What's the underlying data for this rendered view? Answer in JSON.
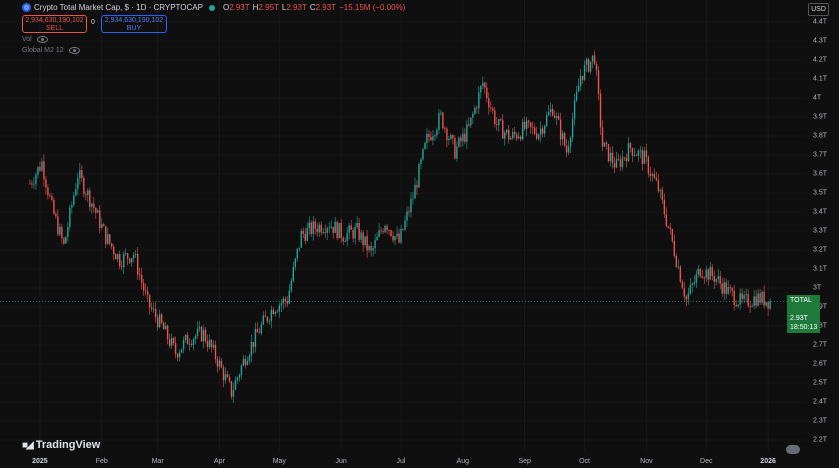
{
  "header": {
    "title": "Crypto Total Market Cap, $ · 1D · CRYPTOCAP",
    "ohlc": [
      {
        "k": "O",
        "v": "2.93T"
      },
      {
        "k": "H",
        "v": "2.95T"
      },
      {
        "k": "L",
        "v": "2.93T"
      },
      {
        "k": "C",
        "v": "2.93T"
      },
      {
        "k": "",
        "v": "−15.15M (−0.00%)"
      }
    ]
  },
  "trade": {
    "sell_price": "2,934,630,190,102",
    "sell_label": "SELL",
    "spread": "0",
    "buy_price": "2,934,630,190,102",
    "buy_label": "BUY"
  },
  "indicators": [
    {
      "label": "Vol"
    },
    {
      "label": "Global M2 12"
    }
  ],
  "currency": "USD",
  "price_tag": {
    "symbol": "TOTAL",
    "price": "2.93T",
    "countdown": "18:50:13"
  },
  "brand": "TradingView",
  "colors": {
    "up": "#26a69a",
    "down": "#ef5350",
    "background": "#0f0f0f",
    "grid": "#1c1c1c"
  },
  "chart_data": {
    "type": "candlestick",
    "y_unit": "T USD",
    "ylim": [
      2.2,
      4.4
    ],
    "y_ticks": [
      "4.4T",
      "4.3T",
      "4.2T",
      "4.1T",
      "4T",
      "3.9T",
      "3.8T",
      "3.7T",
      "3.6T",
      "3.5T",
      "3.4T",
      "3.3T",
      "3.2T",
      "3.1T",
      "3T",
      "2.9T",
      "2.8T",
      "2.7T",
      "2.6T",
      "2.5T",
      "2.4T",
      "2.3T",
      "2.2T"
    ],
    "x_ticks": [
      "2025",
      "Feb",
      "Mar",
      "Apr",
      "May",
      "Jun",
      "Jul",
      "Aug",
      "Sep",
      "Oct",
      "Nov",
      "Dec",
      "2026"
    ],
    "x_ticks_bold": [
      "2025",
      "2026"
    ],
    "grid": true,
    "close_series": [
      {
        "date": "2024-12-27",
        "close": 3.55
      },
      {
        "date": "2025-01-02",
        "close": 3.66
      },
      {
        "date": "2025-01-07",
        "close": 3.42
      },
      {
        "date": "2025-01-13",
        "close": 3.22
      },
      {
        "date": "2025-01-20",
        "close": 3.6
      },
      {
        "date": "2025-01-27",
        "close": 3.45
      },
      {
        "date": "2025-02-03",
        "close": 3.27
      },
      {
        "date": "2025-02-10",
        "close": 3.15
      },
      {
        "date": "2025-02-17",
        "close": 3.18
      },
      {
        "date": "2025-02-24",
        "close": 2.92
      },
      {
        "date": "2025-03-03",
        "close": 2.8
      },
      {
        "date": "2025-03-10",
        "close": 2.66
      },
      {
        "date": "2025-03-17",
        "close": 2.74
      },
      {
        "date": "2025-03-24",
        "close": 2.76
      },
      {
        "date": "2025-03-31",
        "close": 2.62
      },
      {
        "date": "2025-04-07",
        "close": 2.45
      },
      {
        "date": "2025-04-14",
        "close": 2.64
      },
      {
        "date": "2025-04-21",
        "close": 2.78
      },
      {
        "date": "2025-04-28",
        "close": 2.9
      },
      {
        "date": "2025-05-05",
        "close": 2.94
      },
      {
        "date": "2025-05-12",
        "close": 3.28
      },
      {
        "date": "2025-05-19",
        "close": 3.32
      },
      {
        "date": "2025-05-26",
        "close": 3.34
      },
      {
        "date": "2025-06-02",
        "close": 3.28
      },
      {
        "date": "2025-06-09",
        "close": 3.3
      },
      {
        "date": "2025-06-16",
        "close": 3.18
      },
      {
        "date": "2025-06-23",
        "close": 3.35
      },
      {
        "date": "2025-06-30",
        "close": 3.24
      },
      {
        "date": "2025-07-07",
        "close": 3.48
      },
      {
        "date": "2025-07-14",
        "close": 3.78
      },
      {
        "date": "2025-07-21",
        "close": 3.9
      },
      {
        "date": "2025-07-28",
        "close": 3.72
      },
      {
        "date": "2025-08-04",
        "close": 3.84
      },
      {
        "date": "2025-08-11",
        "close": 4.08
      },
      {
        "date": "2025-08-18",
        "close": 3.86
      },
      {
        "date": "2025-08-25",
        "close": 3.79
      },
      {
        "date": "2025-09-01",
        "close": 3.84
      },
      {
        "date": "2025-09-08",
        "close": 3.82
      },
      {
        "date": "2025-09-15",
        "close": 3.95
      },
      {
        "date": "2025-09-22",
        "close": 3.72
      },
      {
        "date": "2025-09-29",
        "close": 4.12
      },
      {
        "date": "2025-10-06",
        "close": 4.22
      },
      {
        "date": "2025-10-10",
        "close": 3.75
      },
      {
        "date": "2025-10-17",
        "close": 3.64
      },
      {
        "date": "2025-10-24",
        "close": 3.74
      },
      {
        "date": "2025-10-31",
        "close": 3.68
      },
      {
        "date": "2025-11-07",
        "close": 3.52
      },
      {
        "date": "2025-11-14",
        "close": 3.24
      },
      {
        "date": "2025-11-21",
        "close": 2.94
      },
      {
        "date": "2025-11-28",
        "close": 3.1
      },
      {
        "date": "2025-12-05",
        "close": 3.06
      },
      {
        "date": "2025-12-12",
        "close": 2.98
      },
      {
        "date": "2025-12-19",
        "close": 2.92
      },
      {
        "date": "2025-12-26",
        "close": 2.95
      },
      {
        "date": "2026-01-02",
        "close": 2.93
      }
    ]
  }
}
